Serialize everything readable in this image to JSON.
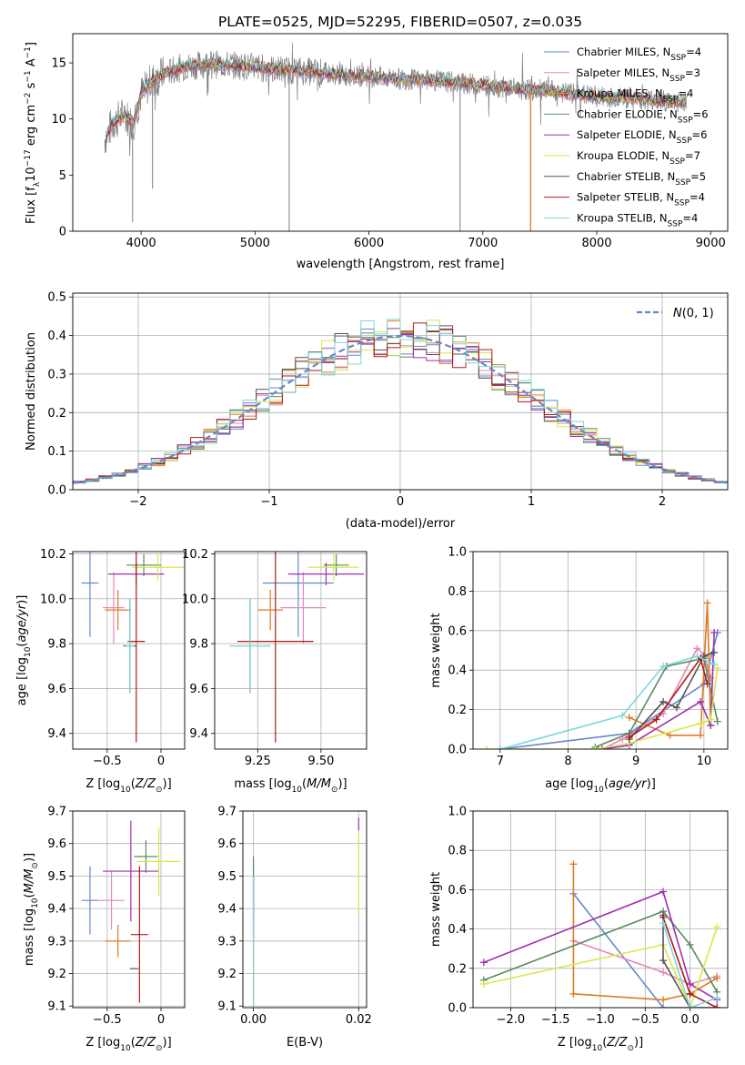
{
  "figure_title": "PLATE=0525, MJD=52295, FIBERID=0507, z=0.035",
  "colors": {
    "c0": "#6688cc",
    "c1": "#e688b8",
    "c2": "#e07a22",
    "c3": "#5a8a5e",
    "c4": "#a030b0",
    "c5": "#d8e84a",
    "c6": "#555555",
    "c7": "#b01818",
    "c8": "#7ed6dc"
  },
  "chart_data": [
    {
      "id": "spectrum",
      "type": "line",
      "xlabel": "wavelength [Angstrom, rest frame]",
      "ylabel": "Flux [f_λ 10^-17 erg cm^-2 s^-1 A^-1]",
      "xlim": [
        3400,
        9150
      ],
      "ylim": [
        0,
        17.6
      ],
      "xticks": [
        4000,
        5000,
        6000,
        7000,
        8000,
        9000
      ],
      "yticks": [
        0,
        5,
        10,
        15
      ],
      "legend_position": "upper right",
      "legend": [
        {
          "label": "Chabrier MILES, N_SSP=4",
          "color": "#6688cc"
        },
        {
          "label": "Salpeter MILES, N_SSP=3",
          "color": "#e688b8"
        },
        {
          "label": "Kroupa MILES, N_SSP=4",
          "color": "#c8a800"
        },
        {
          "label": "Chabrier ELODIE, N_SSP=6",
          "color": "#5a8a5e"
        },
        {
          "label": "Salpeter ELODIE, N_SSP=6",
          "color": "#a030b0"
        },
        {
          "label": "Kroupa ELODIE, N_SSP=7",
          "color": "#d8e84a"
        },
        {
          "label": "Chabrier STELIB, N_SSP=5",
          "color": "#555555"
        },
        {
          "label": "Salpeter STELIB, N_SSP=4",
          "color": "#b01818"
        },
        {
          "label": "Kroupa STELIB, N_SSP=4",
          "color": "#7ed6dc"
        }
      ],
      "continuum": [
        [
          3680,
          8.2
        ],
        [
          3750,
          9.6
        ],
        [
          3850,
          10.4
        ],
        [
          3930,
          9.6
        ],
        [
          4000,
          12.2
        ],
        [
          4100,
          13.4
        ],
        [
          4200,
          14.0
        ],
        [
          4300,
          14.4
        ],
        [
          4400,
          14.7
        ],
        [
          4600,
          14.9
        ],
        [
          4800,
          14.8
        ],
        [
          5000,
          14.6
        ],
        [
          5200,
          14.4
        ],
        [
          5400,
          14.3
        ],
        [
          5600,
          14.1
        ],
        [
          5800,
          13.9
        ],
        [
          6000,
          13.8
        ],
        [
          6200,
          13.6
        ],
        [
          6400,
          13.5
        ],
        [
          6600,
          13.4
        ],
        [
          6800,
          13.2
        ],
        [
          7000,
          13.0
        ],
        [
          7200,
          12.8
        ],
        [
          7400,
          12.6
        ],
        [
          7600,
          12.5
        ],
        [
          7800,
          12.2
        ],
        [
          8000,
          12.0
        ],
        [
          8200,
          11.9
        ],
        [
          8400,
          11.8
        ],
        [
          8600,
          11.6
        ],
        [
          8800,
          11.5
        ]
      ],
      "observed_dips": [
        [
          3925,
          0.8
        ],
        [
          4100,
          3.8
        ],
        [
          5300,
          0.0
        ],
        [
          6800,
          0.0
        ],
        [
          7420,
          0.0
        ]
      ]
    },
    {
      "id": "residuals",
      "type": "histogram",
      "xlabel": "(data-model)/error",
      "ylabel": "Normed distribution",
      "xlim": [
        -2.5,
        2.5
      ],
      "ylim": [
        0,
        0.51
      ],
      "xticks": [
        -2,
        -1,
        0,
        1,
        2
      ],
      "yticks": [
        0.0,
        0.1,
        0.2,
        0.3,
        0.4,
        0.5
      ],
      "legend": [
        {
          "label": "N(0,1)",
          "style": "dashed",
          "color": "#6688cc"
        }
      ],
      "bins": {
        "start": -2.5,
        "width": 0.1,
        "count": 50
      },
      "reference_curve": "gaussian mean 0, sigma 1"
    },
    {
      "id": "age_vs_Z",
      "type": "errorbar",
      "xlabel": "Z [log10(Z/Z⊙)]",
      "ylabel": "age  [log10(age/yr)]",
      "xlim": [
        -0.82,
        0.22
      ],
      "ylim": [
        9.33,
        10.21
      ],
      "xticks": [
        -0.5,
        0.0
      ],
      "yticks": [
        9.4,
        9.6,
        9.8,
        10.0,
        10.2
      ],
      "points": [
        {
          "x": -0.66,
          "xerr": 0.08,
          "y": 10.07,
          "yerr": 0.24,
          "color": "#6688cc"
        },
        {
          "x": -0.44,
          "xerr": 0.1,
          "y": 9.96,
          "yerr": 0.16,
          "color": "#e688b8"
        },
        {
          "x": -0.4,
          "xerr": 0.12,
          "y": 9.95,
          "yerr": 0.09,
          "color": "#e07a22"
        },
        {
          "x": -0.16,
          "xerr": 0.16,
          "y": 10.15,
          "yerr": 0.05,
          "color": "#5a8a5e"
        },
        {
          "x": -0.23,
          "xerr": 0.26,
          "y": 10.11,
          "yerr": 0.05,
          "color": "#a030b0"
        },
        {
          "x": -0.03,
          "xerr": 0.24,
          "y": 10.14,
          "yerr": 0.06,
          "color": "#d8e84a"
        },
        {
          "x": -0.29,
          "xerr": 0.06,
          "y": 9.79,
          "yerr": 0.21,
          "color": "#555555"
        },
        {
          "x": -0.23,
          "xerr": 0.08,
          "y": 9.81,
          "yerr": 0.45,
          "color": "#b01818"
        },
        {
          "x": -0.29,
          "xerr": 0.04,
          "y": 9.79,
          "yerr": 0.21,
          "color": "#7ed6dc"
        }
      ]
    },
    {
      "id": "age_vs_mass",
      "type": "errorbar",
      "xlabel": "mass [log10(M/M⊙)]",
      "ylabel": "",
      "xlim": [
        9.08,
        9.68
      ],
      "ylim": [
        9.33,
        10.21
      ],
      "xticks": [
        9.25,
        9.5
      ],
      "yticks": [
        9.4,
        9.6,
        9.8,
        10.0,
        10.2
      ],
      "points": [
        {
          "x": 9.41,
          "xerr": 0.14,
          "y": 10.07,
          "yerr": 0.24,
          "color": "#6688cc"
        },
        {
          "x": 9.43,
          "xerr": 0.09,
          "y": 9.96,
          "yerr": 0.16,
          "color": "#e688b8"
        },
        {
          "x": 9.3,
          "xerr": 0.05,
          "y": 9.95,
          "yerr": 0.09,
          "color": "#e07a22"
        },
        {
          "x": 9.56,
          "xerr": 0.05,
          "y": 10.15,
          "yerr": 0.05,
          "color": "#5a8a5e"
        },
        {
          "x": 9.52,
          "xerr": 0.15,
          "y": 10.11,
          "yerr": 0.05,
          "color": "#a030b0"
        },
        {
          "x": 9.55,
          "xerr": 0.1,
          "y": 10.14,
          "yerr": 0.06,
          "color": "#d8e84a"
        },
        {
          "x": 9.22,
          "xerr": 0.08,
          "y": 9.79,
          "yerr": 0.21,
          "color": "#555555"
        },
        {
          "x": 9.32,
          "xerr": 0.15,
          "y": 9.81,
          "yerr": 0.45,
          "color": "#b01818"
        },
        {
          "x": 9.22,
          "xerr": 0.08,
          "y": 9.79,
          "yerr": 0.21,
          "color": "#7ed6dc"
        }
      ]
    },
    {
      "id": "weight_vs_age",
      "type": "line",
      "xlabel": "age  [log10(age/yr)]",
      "ylabel": "mass weight",
      "xlim": [
        6.6,
        10.35
      ],
      "ylim": [
        0,
        1.0
      ],
      "xticks": [
        7,
        8,
        9,
        10
      ],
      "yticks": [
        0.0,
        0.2,
        0.4,
        0.6,
        0.8,
        1.0
      ],
      "series": [
        {
          "color": "#6688cc",
          "x": [
            7.0,
            8.9,
            10.0,
            10.2
          ],
          "y": [
            0.0,
            0.08,
            0.33,
            0.59
          ]
        },
        {
          "color": "#e688b8",
          "x": [
            8.5,
            8.8,
            9.4,
            9.9,
            10.0,
            10.1
          ],
          "y": [
            0.0,
            0.05,
            0.18,
            0.51,
            0.48,
            0.36
          ]
        },
        {
          "color": "#e07a22",
          "x": [
            8.9,
            9.5,
            9.95,
            10.05,
            10.1
          ],
          "y": [
            0.16,
            0.07,
            0.07,
            0.74,
            0.12
          ]
        },
        {
          "color": "#5a8a5e",
          "x": [
            8.4,
            8.9,
            9.45,
            10.0,
            10.2
          ],
          "y": [
            0.01,
            0.08,
            0.42,
            0.46,
            0.14
          ]
        },
        {
          "color": "#a030b0",
          "x": [
            8.5,
            8.9,
            9.95,
            10.1,
            10.15
          ],
          "y": [
            0.0,
            0.02,
            0.24,
            0.12,
            0.59
          ]
        },
        {
          "color": "#d8e84a",
          "x": [
            6.8,
            8.4,
            8.9,
            9.95,
            10.1,
            10.2
          ],
          "y": [
            0.0,
            0.0,
            0.03,
            0.13,
            0.15,
            0.41
          ]
        },
        {
          "color": "#555555",
          "x": [
            8.9,
            9.4,
            9.6,
            10.0,
            10.15
          ],
          "y": [
            0.05,
            0.24,
            0.21,
            0.47,
            0.49
          ]
        },
        {
          "color": "#b01818",
          "x": [
            8.9,
            9.3,
            9.95,
            10.05
          ],
          "y": [
            0.06,
            0.15,
            0.46,
            0.33
          ]
        },
        {
          "color": "#7ed6dc",
          "x": [
            7.0,
            8.8,
            9.4,
            9.9,
            10.15
          ],
          "y": [
            0.0,
            0.17,
            0.42,
            0.47,
            0.43
          ]
        }
      ]
    },
    {
      "id": "mass_vs_Z",
      "type": "errorbar",
      "xlabel": "Z [log10(Z/Z⊙)]",
      "ylabel": "mass [log10(M/M⊙)]",
      "xlim": [
        -0.82,
        0.22
      ],
      "ylim": [
        9.095,
        9.7
      ],
      "xticks": [
        -0.5,
        0.0
      ],
      "yticks": [
        9.1,
        9.2,
        9.3,
        9.4,
        9.5,
        9.6,
        9.7
      ],
      "points": [
        {
          "x": -0.66,
          "xerr": 0.08,
          "y": 9.425,
          "yerr": 0.105,
          "color": "#6688cc"
        },
        {
          "x": -0.46,
          "xerr": 0.12,
          "y": 9.425,
          "yerr": 0.09,
          "color": "#e688b8"
        },
        {
          "x": -0.4,
          "xerr": 0.12,
          "y": 9.3,
          "yerr": 0.05,
          "color": "#e07a22"
        },
        {
          "x": -0.14,
          "xerr": 0.11,
          "y": 9.56,
          "yerr": 0.05,
          "color": "#5a8a5e"
        },
        {
          "x": -0.28,
          "xerr": 0.26,
          "y": 9.515,
          "yerr": 0.155,
          "color": "#a030b0"
        },
        {
          "x": -0.02,
          "xerr": 0.2,
          "y": 9.545,
          "yerr": 0.105,
          "color": "#d8e84a"
        },
        {
          "x": -0.25,
          "xerr": 0.04,
          "y": 9.215,
          "yerr": 0.0,
          "color": "#555555"
        },
        {
          "x": -0.2,
          "xerr": 0.08,
          "y": 9.32,
          "yerr": 0.21,
          "color": "#b01818"
        },
        {
          "x": -0.28,
          "xerr": 0.0,
          "y": 9.215,
          "yerr": 0.0,
          "color": "#7ed6dc"
        }
      ]
    },
    {
      "id": "mass_vs_EBV",
      "type": "errorbar",
      "xlabel": "E(B-V)",
      "ylabel": "",
      "xlim": [
        -0.002,
        0.0215
      ],
      "ylim": [
        9.095,
        9.7
      ],
      "xticks": [
        0.0,
        0.02
      ],
      "yticks": [
        9.1,
        9.2,
        9.3,
        9.4,
        9.5,
        9.6,
        9.7
      ],
      "xtick_labels": [
        "0.00",
        "0.02"
      ],
      "points": [
        {
          "x": 0.0,
          "y": 9.42,
          "yerr": 0.11,
          "color": "#6688cc"
        },
        {
          "x": 0.0,
          "y": 9.46,
          "yerr": 0.1,
          "color": "#5a8a5e"
        },
        {
          "x": 0.0,
          "y": 9.3,
          "yerr": 0.2,
          "color": "#b01818"
        },
        {
          "x": 0.0,
          "y": 9.3,
          "yerr": 0.2,
          "color": "#7ed6dc"
        },
        {
          "x": 0.02,
          "y": 9.52,
          "yerr": 0.14,
          "color": "#d8e84a"
        },
        {
          "x": 0.02,
          "y": 9.66,
          "yerr": 0.02,
          "color": "#a030b0"
        }
      ]
    },
    {
      "id": "weight_vs_Z",
      "type": "line",
      "xlabel": "Z [log10(Z/Z⊙)]",
      "ylabel": "mass weight",
      "xlim": [
        -2.42,
        0.42
      ],
      "ylim": [
        0,
        1.0
      ],
      "xticks": [
        -2.0,
        -1.5,
        -1.0,
        -0.5,
        0.0
      ],
      "yticks": [
        0.0,
        0.2,
        0.4,
        0.6,
        0.8,
        1.0
      ],
      "series": [
        {
          "color": "#6688cc",
          "x": [
            -1.3,
            -0.3,
            0.0
          ],
          "y": [
            0.58,
            0.0,
            0.0
          ]
        },
        {
          "color": "#e688b8",
          "x": [
            -1.3,
            -0.3,
            0.0,
            0.3
          ],
          "y": [
            0.34,
            0.18,
            0.12,
            0.16
          ]
        },
        {
          "color": "#e07a22",
          "x": [
            -1.3,
            -1.3,
            -0.3,
            0.0,
            0.3
          ],
          "y": [
            0.73,
            0.07,
            0.04,
            0.07,
            0.15
          ]
        },
        {
          "color": "#5a8a5e",
          "x": [
            -2.3,
            -0.3,
            0.0,
            0.3
          ],
          "y": [
            0.14,
            0.49,
            0.32,
            0.08
          ]
        },
        {
          "color": "#a030b0",
          "x": [
            -2.3,
            -0.3,
            0.0,
            0.3
          ],
          "y": [
            0.23,
            0.59,
            0.12,
            0.04
          ]
        },
        {
          "color": "#d8e84a",
          "x": [
            -2.3,
            -0.3,
            0.0,
            0.3
          ],
          "y": [
            0.12,
            0.32,
            0.0,
            0.41
          ]
        },
        {
          "color": "#555555",
          "x": [
            -0.3,
            -0.3,
            0.0,
            0.3
          ],
          "y": [
            0.47,
            0.24,
            0.0,
            0.0
          ]
        },
        {
          "color": "#b01818",
          "x": [
            -0.3,
            0.0,
            0.3
          ],
          "y": [
            0.46,
            0.07,
            0.0
          ]
        },
        {
          "color": "#7ed6dc",
          "x": [
            -0.3,
            0.0,
            0.3
          ],
          "y": [
            0.43,
            0.0,
            0.05
          ]
        }
      ]
    }
  ]
}
